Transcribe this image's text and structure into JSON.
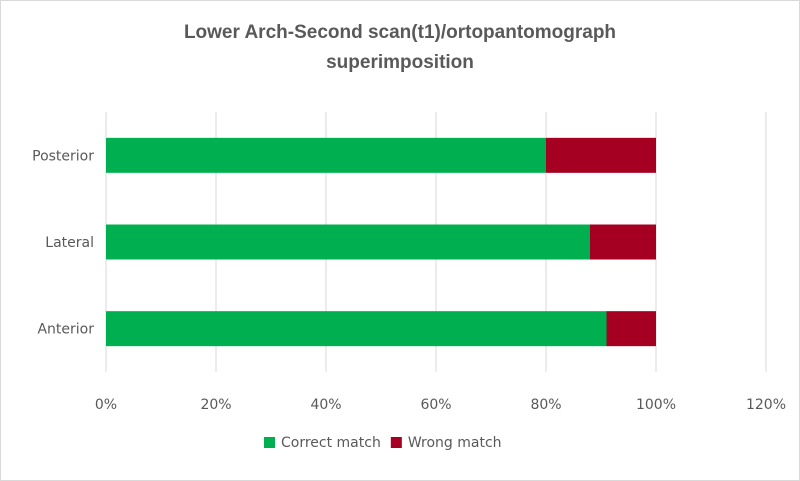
{
  "chart_data": {
    "type": "bar",
    "orientation": "horizontal",
    "stacked": true,
    "title": "Lower Arch-Second scan(t1)/ortopantomograph superimposition",
    "title_lines": [
      "Lower Arch-Second scan(t1)/ortopantomograph",
      "superimposition"
    ],
    "categories": [
      "Posterior",
      "Lateral",
      "Anterior"
    ],
    "series": [
      {
        "name": "Correct match",
        "color": "#00b050",
        "values": [
          0.8,
          0.88,
          0.91
        ]
      },
      {
        "name": "Wrong match",
        "color": "#a50021",
        "values": [
          0.2,
          0.12,
          0.09
        ]
      }
    ],
    "xlim": [
      0,
      1.2
    ],
    "x_ticks": [
      0,
      0.2,
      0.4,
      0.6,
      0.8,
      1.0,
      1.2
    ],
    "x_tick_labels": [
      "0%",
      "20%",
      "40%",
      "60%",
      "80%",
      "100%",
      "120%"
    ],
    "grid": true,
    "legend_position": "bottom"
  }
}
